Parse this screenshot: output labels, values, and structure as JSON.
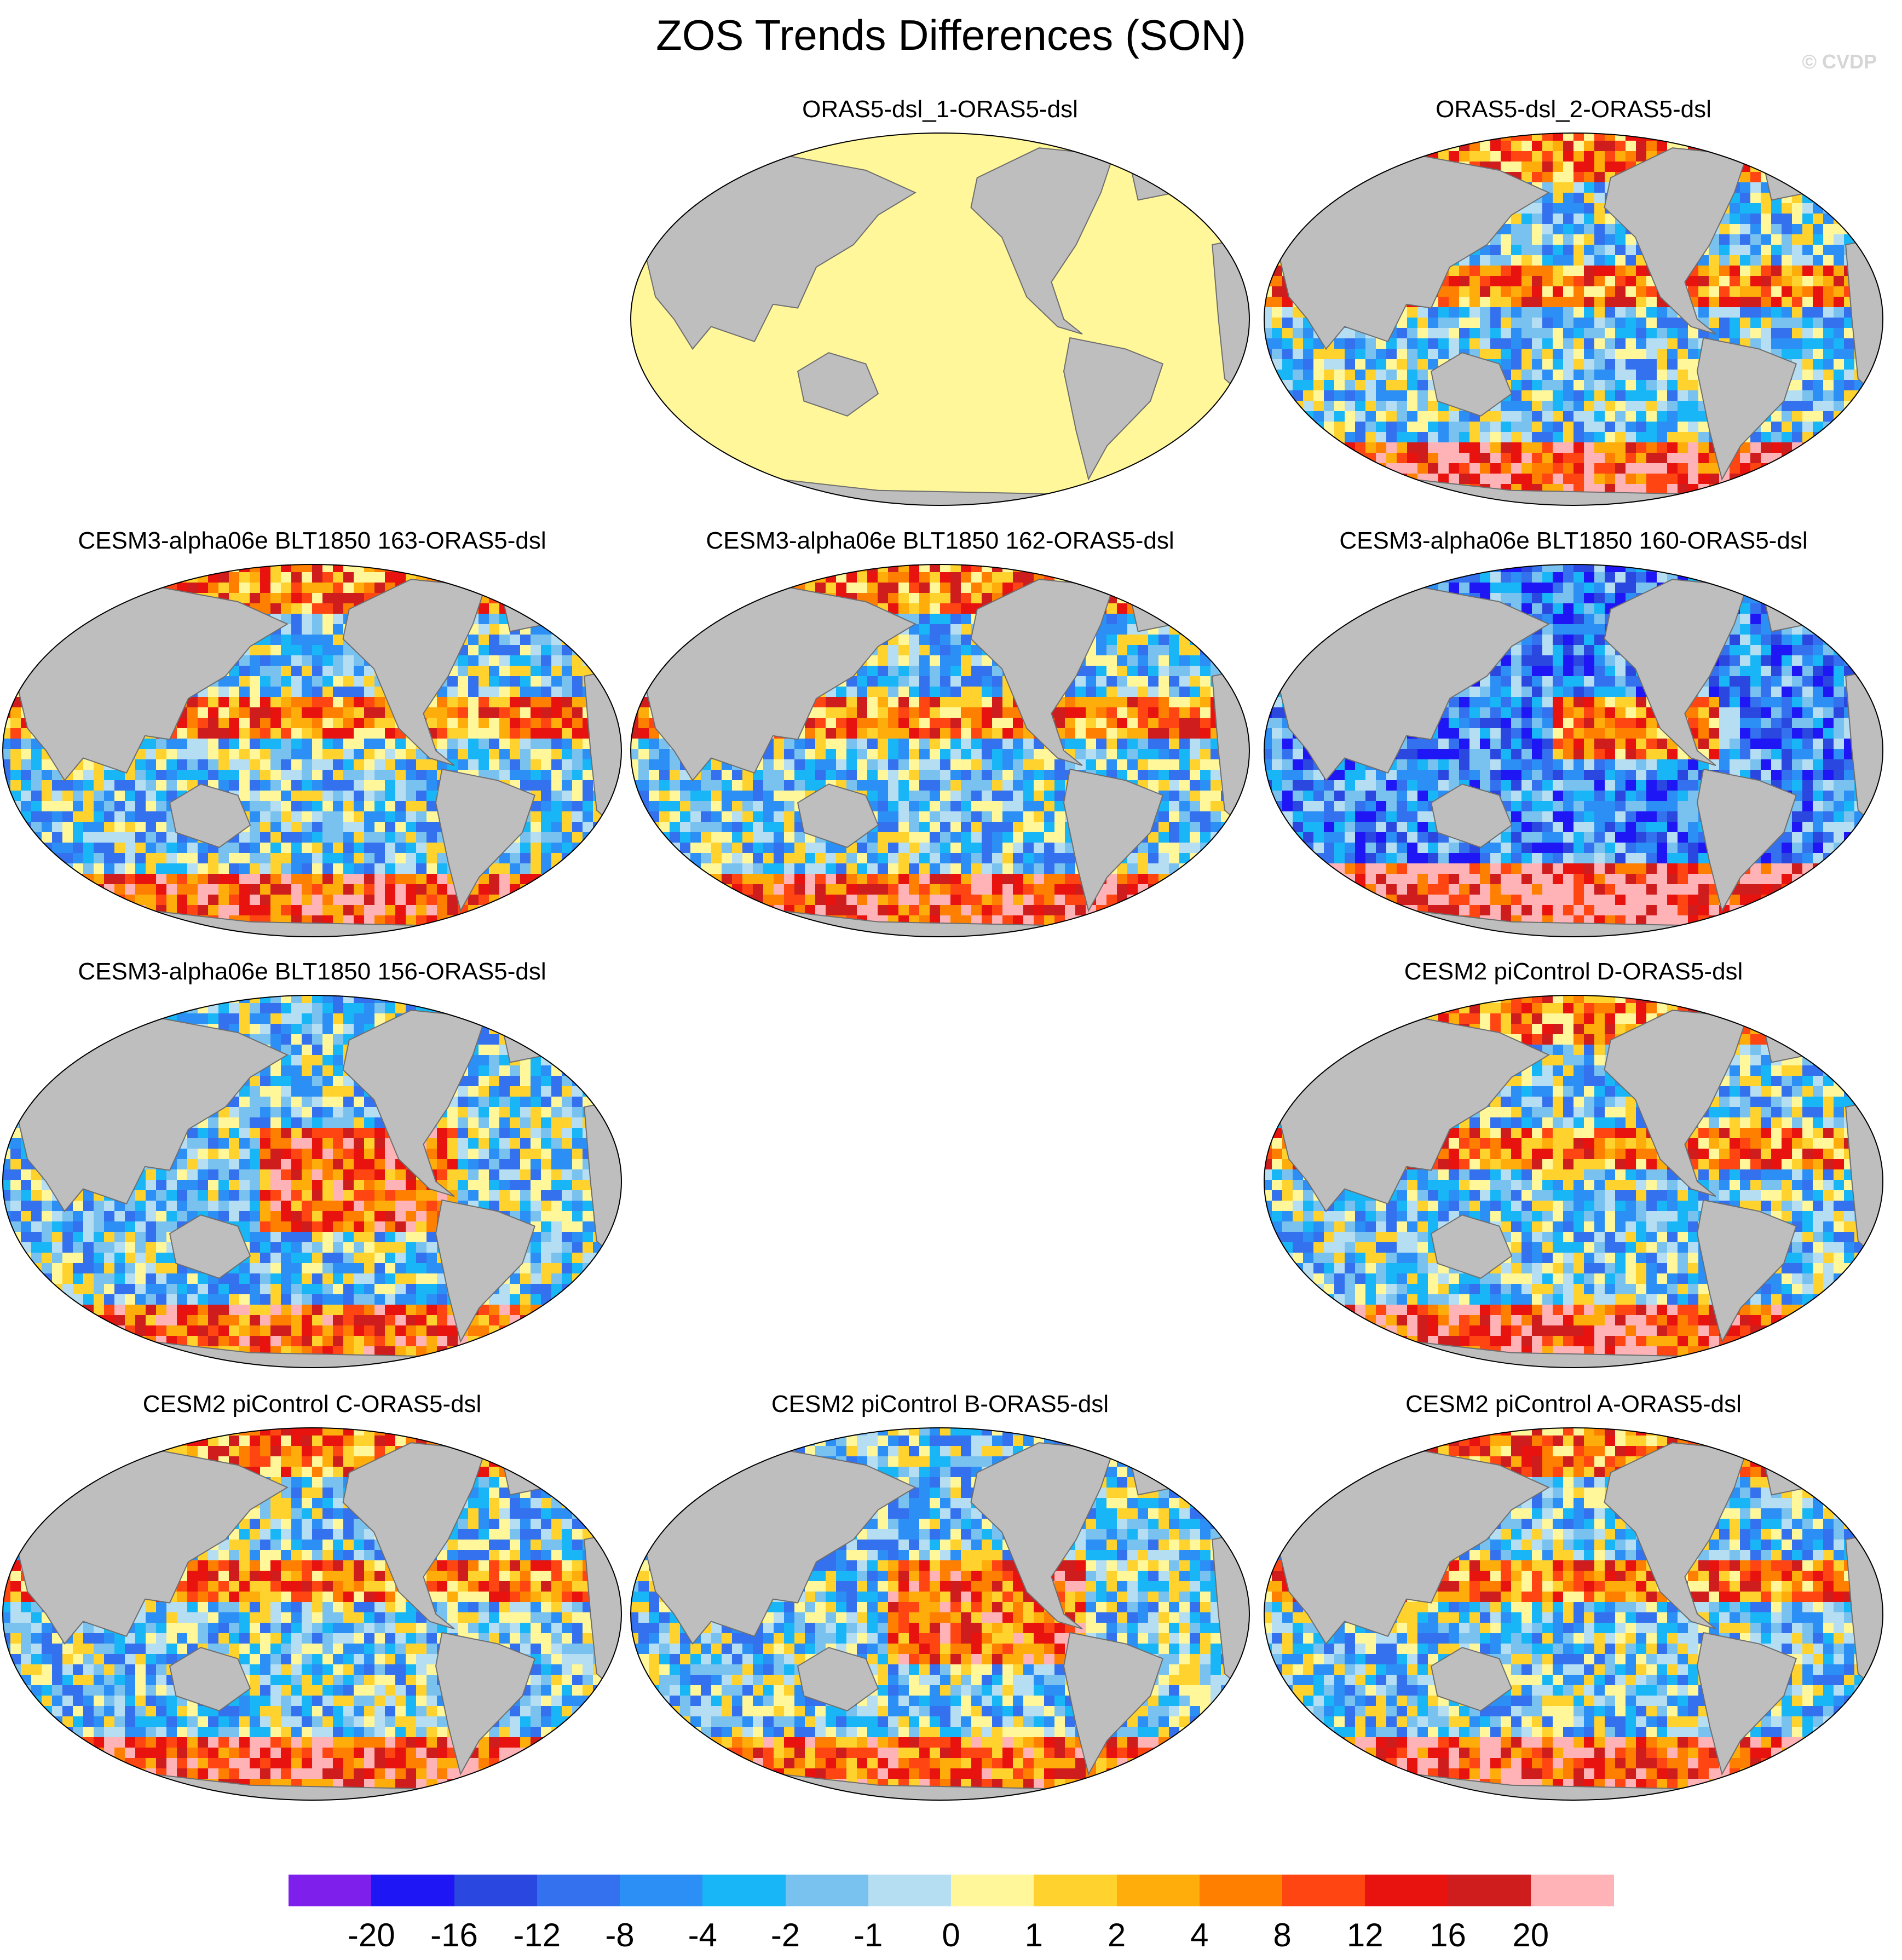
{
  "figure": {
    "title": "ZOS Trends Differences (SON)",
    "credit": "© CVDP"
  },
  "colors": {
    "ocean_neutral": "#fff799",
    "land": "#bebebe",
    "coast": "#6e6e6e",
    "ice": "#ffffff"
  },
  "icons": {
    "map_projection": "world-map-icon"
  },
  "chart_data": {
    "type": "heatmap",
    "title": "ZOS Trends Differences (SON)",
    "projection": "global map, Pacific-centered",
    "panels": [
      {
        "label": "ORAS5-dsl_1-ORAS5-dsl",
        "uniform_value": 0,
        "pattern": "zero"
      },
      {
        "label": "ORAS5-dsl_2-ORAS5-dsl",
        "pattern": "mixed"
      },
      {
        "label": "CESM3-alpha06e BLT1850 163-ORAS5-dsl",
        "pattern": "mixed"
      },
      {
        "label": "CESM3-alpha06e BLT1850 162-ORAS5-dsl",
        "pattern": "mixed"
      },
      {
        "label": "CESM3-alpha06e BLT1850 160-ORAS5-dsl",
        "pattern": "negative-dominant"
      },
      {
        "label": "CESM3-alpha06e BLT1850 156-ORAS5-dsl",
        "pattern": "positive-pacific"
      },
      {
        "label": "CESM2 piControl D-ORAS5-dsl",
        "pattern": "mixed"
      },
      {
        "label": "CESM2 piControl C-ORAS5-dsl",
        "pattern": "mixed"
      },
      {
        "label": "CESM2 piControl B-ORAS5-dsl",
        "pattern": "positive-pacific"
      },
      {
        "label": "CESM2 piControl A-ORAS5-dsl",
        "pattern": "mixed"
      }
    ],
    "colorbar": {
      "levels": [
        "-20",
        "-16",
        "-12",
        "-8",
        "-4",
        "-2",
        "-1",
        "0",
        "1",
        "2",
        "4",
        "8",
        "12",
        "16",
        "20"
      ],
      "colors": [
        "#7f1fec",
        "#1e16f5",
        "#2a48e0",
        "#3471ee",
        "#2b8ff5",
        "#18b6f6",
        "#79c2f0",
        "#b6def2",
        "#fff799",
        "#ffd22d",
        "#ffad0a",
        "#ff7f00",
        "#ff4612",
        "#e8120e",
        "#cf1c1c",
        "#ffb3b6"
      ]
    }
  }
}
